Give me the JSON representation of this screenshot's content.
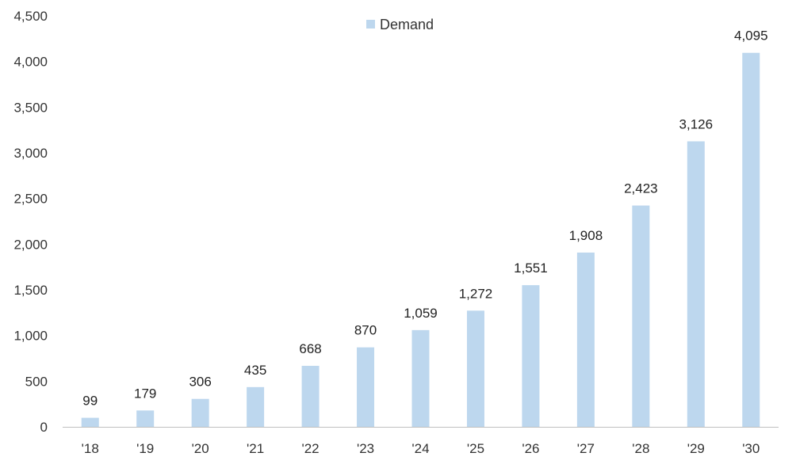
{
  "chart_data": {
    "type": "bar",
    "categories": [
      "'18",
      "'19",
      "'20",
      "'21",
      "'22",
      "'23",
      "'24",
      "'25",
      "'26",
      "'27",
      "'28",
      "'29",
      "'30"
    ],
    "series": [
      {
        "name": "Demand",
        "values": [
          99,
          179,
          306,
          435,
          668,
          870,
          1059,
          1272,
          1551,
          1908,
          2423,
          3126,
          4095
        ],
        "color": "#bdd7ee"
      }
    ],
    "data_labels": [
      "99",
      "179",
      "306",
      "435",
      "668",
      "870",
      "1,059",
      "1,272",
      "1,551",
      "1,908",
      "2,423",
      "3,126",
      "4,095"
    ],
    "y_ticks": [
      0,
      500,
      1000,
      1500,
      2000,
      2500,
      3000,
      3500,
      4000,
      4500
    ],
    "y_tick_labels": [
      "0",
      "500",
      "1,000",
      "1,500",
      "2,000",
      "2,500",
      "3,000",
      "3,500",
      "4,000",
      "4,500"
    ],
    "ylim": [
      0,
      4500
    ],
    "title": "",
    "xlabel": "",
    "ylabel": "",
    "grid": false,
    "legend_position": "top-center",
    "axis_color": "#bfbfbf"
  }
}
